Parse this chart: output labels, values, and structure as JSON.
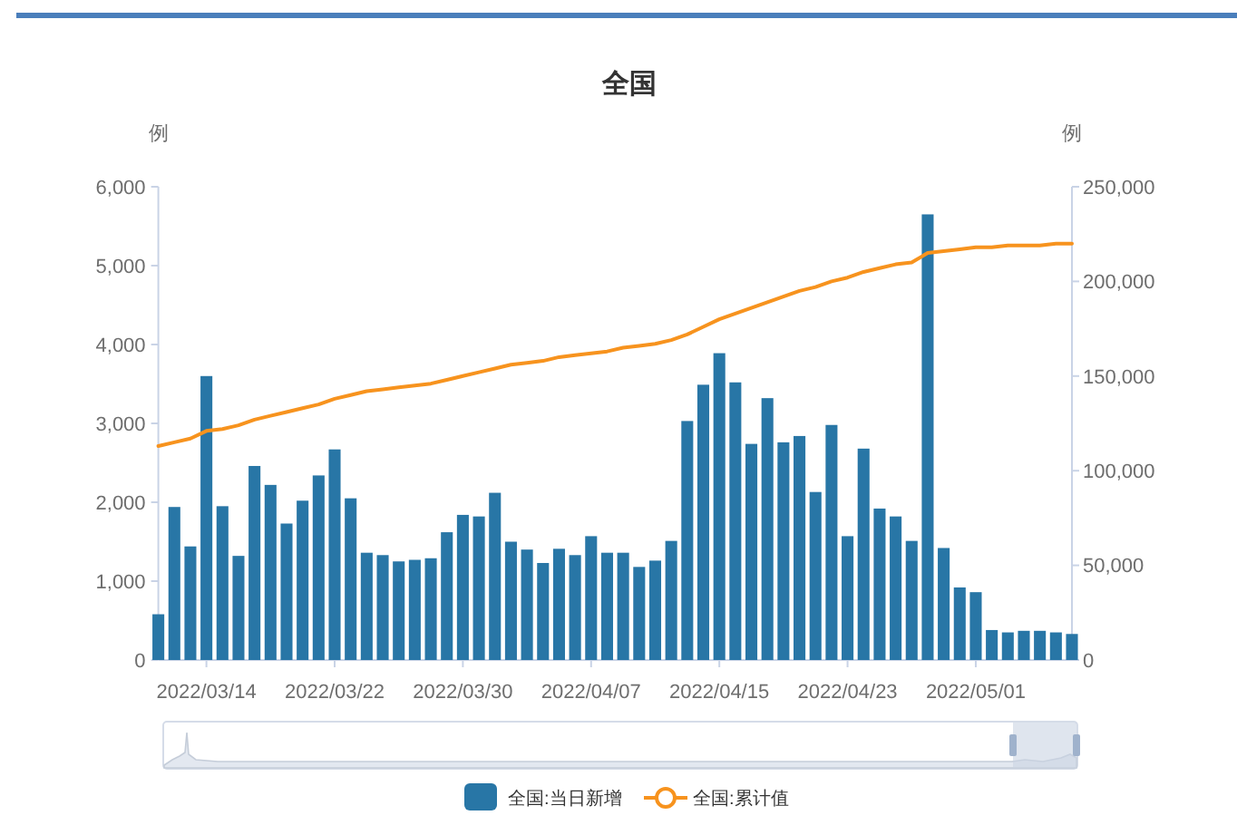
{
  "chart_data": {
    "type": "bar",
    "title": "全国",
    "ylabel": "例",
    "y2label": "例",
    "x": [
      "2022-03-11",
      "2022-03-12",
      "2022-03-13",
      "2022-03-14",
      "2022-03-15",
      "2022-03-16",
      "2022-03-17",
      "2022-03-18",
      "2022-03-19",
      "2022-03-20",
      "2022-03-21",
      "2022-03-22",
      "2022-03-23",
      "2022-03-24",
      "2022-03-25",
      "2022-03-26",
      "2022-03-27",
      "2022-03-28",
      "2022-03-29",
      "2022-03-30",
      "2022-03-31",
      "2022-04-01",
      "2022-04-02",
      "2022-04-03",
      "2022-04-04",
      "2022-04-05",
      "2022-04-06",
      "2022-04-07",
      "2022-04-08",
      "2022-04-09",
      "2022-04-10",
      "2022-04-11",
      "2022-04-12",
      "2022-04-13",
      "2022-04-14",
      "2022-04-15",
      "2022-04-16",
      "2022-04-17",
      "2022-04-18",
      "2022-04-19",
      "2022-04-20",
      "2022-04-21",
      "2022-04-22",
      "2022-04-23",
      "2022-04-24",
      "2022-04-25",
      "2022-04-26",
      "2022-04-27",
      "2022-04-28",
      "2022-04-29",
      "2022-04-30",
      "2022-05-01",
      "2022-05-02",
      "2022-05-03",
      "2022-05-04",
      "2022-05-05",
      "2022-05-06",
      "2022-05-07"
    ],
    "xlim": [
      "2022-03-11",
      "2022-05-07"
    ],
    "xticks": [
      {
        "value": "2022-03-14",
        "label": "2022/03/14"
      },
      {
        "value": "2022-03-22",
        "label": "2022/03/22"
      },
      {
        "value": "2022-03-30",
        "label": "2022/03/30"
      },
      {
        "value": "2022-04-07",
        "label": "2022/04/07"
      },
      {
        "value": "2022-04-15",
        "label": "2022/04/15"
      },
      {
        "value": "2022-04-23",
        "label": "2022/04/23"
      },
      {
        "value": "2022-05-01",
        "label": "2022/05/01"
      }
    ],
    "ylim": [
      0,
      6000
    ],
    "yticks": [
      0,
      {
        "value": 1000,
        "label": "1,000"
      },
      {
        "value": 2000,
        "label": "2,000"
      },
      {
        "value": 3000,
        "label": "3,000"
      },
      {
        "value": 4000,
        "label": "4,000"
      },
      {
        "value": 5000,
        "label": "5,000"
      },
      {
        "value": 6000,
        "label": "6,000"
      }
    ],
    "y2lim": [
      0,
      250000
    ],
    "y2ticks": [
      0,
      {
        "value": 50000,
        "label": "50,000"
      },
      {
        "value": 100000,
        "label": "100,000"
      },
      {
        "value": 150000,
        "label": "150,000"
      },
      {
        "value": 200000,
        "label": "200,000"
      },
      {
        "value": 250000,
        "label": "250,000"
      }
    ],
    "series": [
      {
        "name": "全国:当日新增",
        "color": "#2876a6",
        "values": [
          580,
          1940,
          1440,
          3600,
          1950,
          1320,
          2460,
          2220,
          1730,
          2020,
          2340,
          2670,
          2050,
          1360,
          1330,
          1250,
          1270,
          1290,
          1620,
          1840,
          1820,
          2120,
          1500,
          1400,
          1230,
          1410,
          1330,
          1570,
          1360,
          1360,
          1180,
          1260,
          1510,
          3030,
          3490,
          3890,
          3520,
          2740,
          3320,
          2760,
          2840,
          2130,
          2980,
          1570,
          2680,
          1920,
          1820,
          1510,
          5650,
          1420,
          920,
          860,
          380,
          350,
          370,
          370,
          350,
          330
        ]
      },
      {
        "name": "全国:累计值",
        "type": "line",
        "axis": "y2",
        "color": "#f7931e",
        "values": [
          113000,
          115000,
          117000,
          121000,
          122000,
          124000,
          127000,
          129000,
          131000,
          133000,
          135000,
          138000,
          140000,
          142000,
          143000,
          144000,
          145000,
          146000,
          148000,
          150000,
          152000,
          154000,
          156000,
          157000,
          158000,
          160000,
          161000,
          162000,
          163000,
          165000,
          166000,
          167000,
          169000,
          172000,
          176000,
          180000,
          183000,
          186000,
          189000,
          192000,
          195000,
          197000,
          200000,
          202000,
          205000,
          207000,
          209000,
          210000,
          215000,
          216000,
          217000,
          218000,
          218000,
          219000,
          219000,
          219000,
          220000,
          220000
        ]
      }
    ],
    "legend": "bottom"
  }
}
